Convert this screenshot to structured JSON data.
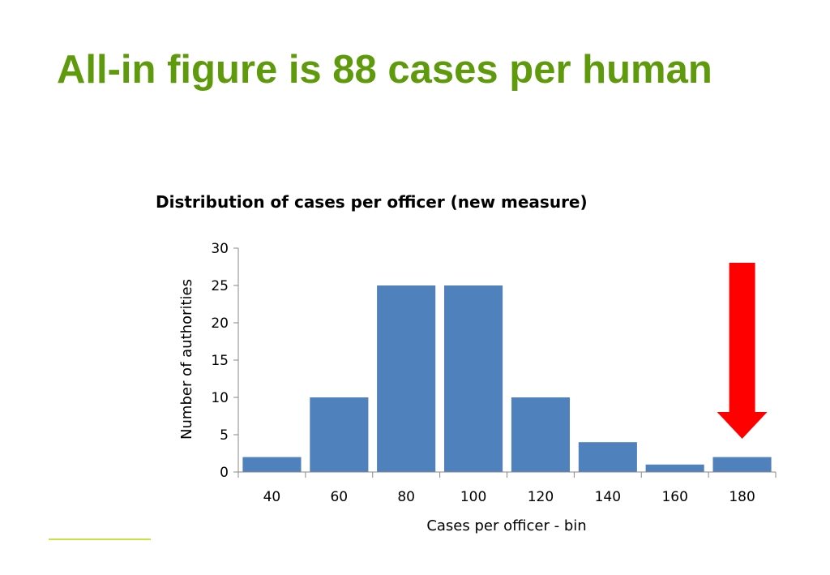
{
  "slide": {
    "title": "All-in figure is 88 cases per human"
  },
  "colors": {
    "title": "#5f9a0c",
    "bar": "#4f81bd",
    "arrow": "#ff0000",
    "axis": "#888888",
    "footer_rule": "#c8e04a"
  },
  "chart_data": {
    "type": "bar",
    "title": "Distribution of cases per officer (new measure)",
    "xlabel": "Cases per officer - bin",
    "ylabel": "Number of authorities",
    "categories": [
      "40",
      "60",
      "80",
      "100",
      "120",
      "140",
      "160",
      "180"
    ],
    "values": [
      2,
      10,
      25,
      25,
      10,
      4,
      1,
      2
    ],
    "ylim": [
      0,
      30
    ],
    "yticks": [
      0,
      5,
      10,
      15,
      20,
      25,
      30
    ],
    "grid": false,
    "legend": "none",
    "annotation": {
      "shape": "down-arrow",
      "color": "#ff0000",
      "points_to_category": "180"
    }
  }
}
